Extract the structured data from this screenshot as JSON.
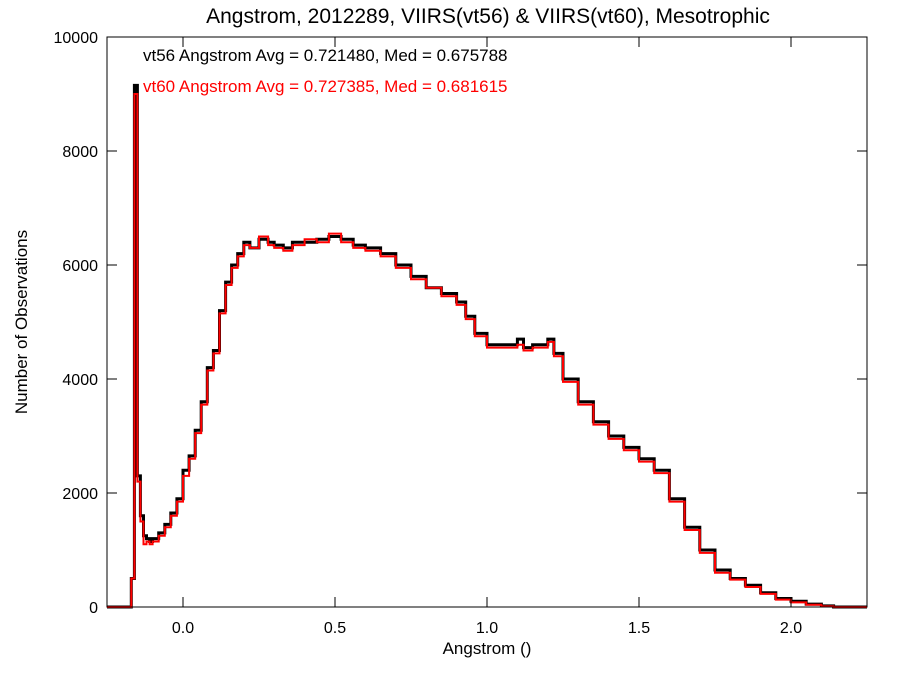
{
  "chart_data": {
    "type": "line",
    "title": "Angstrom, 2012289, VIIRS(vt56) & VIIRS(vt60), Mesotrophic",
    "xlabel": "Angstrom ()",
    "ylabel": "Number of Observations",
    "xlim": [
      -0.25,
      2.25
    ],
    "ylim": [
      0,
      10000
    ],
    "xticks": [
      0.0,
      0.5,
      1.0,
      1.5,
      2.0
    ],
    "xtick_labels": [
      "0.0",
      "0.5",
      "1.0",
      "1.5",
      "2.0"
    ],
    "yticks": [
      0,
      2000,
      4000,
      6000,
      8000,
      10000
    ],
    "ytick_labels": [
      "0",
      "2000",
      "4000",
      "6000",
      "8000",
      "10000"
    ],
    "grid": false,
    "step": true,
    "annotations": [
      {
        "text": "vt56 Angstrom Avg = 0.721480, Med = 0.675788",
        "color": "#000000"
      },
      {
        "text": "vt60 Angstrom Avg = 0.727385, Med = 0.681615",
        "color": "#ff0000"
      }
    ],
    "series": [
      {
        "color": "#000000",
        "x": [
          -0.25,
          -0.17,
          -0.16,
          -0.15,
          -0.14,
          -0.13,
          -0.12,
          -0.11,
          -0.1,
          -0.08,
          -0.06,
          -0.04,
          -0.02,
          0.0,
          0.02,
          0.04,
          0.06,
          0.08,
          0.1,
          0.12,
          0.14,
          0.16,
          0.18,
          0.2,
          0.22,
          0.25,
          0.28,
          0.3,
          0.33,
          0.36,
          0.4,
          0.44,
          0.48,
          0.52,
          0.56,
          0.6,
          0.65,
          0.7,
          0.75,
          0.8,
          0.85,
          0.9,
          0.93,
          0.96,
          1.0,
          1.05,
          1.1,
          1.12,
          1.15,
          1.2,
          1.22,
          1.25,
          1.3,
          1.35,
          1.4,
          1.45,
          1.5,
          1.55,
          1.6,
          1.65,
          1.7,
          1.75,
          1.8,
          1.85,
          1.9,
          1.95,
          2.0,
          2.05,
          2.1,
          2.14,
          2.25
        ],
        "values": [
          0,
          500,
          9150,
          2300,
          1600,
          1250,
          1200,
          1150,
          1200,
          1300,
          1450,
          1650,
          1900,
          2400,
          2650,
          3100,
          3600,
          4200,
          4500,
          5200,
          5700,
          6000,
          6200,
          6400,
          6300,
          6450,
          6400,
          6350,
          6300,
          6400,
          6400,
          6450,
          6500,
          6450,
          6350,
          6300,
          6200,
          6000,
          5800,
          5600,
          5500,
          5350,
          5100,
          4800,
          4600,
          4600,
          4700,
          4550,
          4600,
          4700,
          4450,
          4000,
          3600,
          3250,
          3000,
          2800,
          2600,
          2400,
          1900,
          1400,
          1000,
          650,
          500,
          380,
          250,
          150,
          100,
          50,
          20,
          0,
          0
        ]
      },
      {
        "color": "#ff0000",
        "x": [
          -0.25,
          -0.17,
          -0.16,
          -0.15,
          -0.14,
          -0.13,
          -0.12,
          -0.11,
          -0.1,
          -0.08,
          -0.06,
          -0.04,
          -0.02,
          0.0,
          0.02,
          0.04,
          0.06,
          0.08,
          0.1,
          0.12,
          0.14,
          0.16,
          0.18,
          0.2,
          0.22,
          0.25,
          0.28,
          0.3,
          0.33,
          0.36,
          0.4,
          0.44,
          0.48,
          0.52,
          0.56,
          0.6,
          0.65,
          0.7,
          0.75,
          0.8,
          0.85,
          0.9,
          0.93,
          0.96,
          1.0,
          1.05,
          1.1,
          1.12,
          1.15,
          1.2,
          1.22,
          1.25,
          1.3,
          1.35,
          1.4,
          1.45,
          1.5,
          1.55,
          1.6,
          1.65,
          1.7,
          1.75,
          1.8,
          1.85,
          1.9,
          1.95,
          2.0,
          2.05,
          2.1,
          2.14,
          2.25
        ],
        "values": [
          0,
          500,
          9000,
          2200,
          1500,
          1100,
          1150,
          1100,
          1150,
          1250,
          1400,
          1600,
          1850,
          2300,
          2600,
          3050,
          3550,
          4150,
          4450,
          5150,
          5650,
          5950,
          6150,
          6350,
          6300,
          6500,
          6350,
          6300,
          6250,
          6350,
          6450,
          6400,
          6550,
          6400,
          6300,
          6250,
          6150,
          5950,
          5750,
          5600,
          5450,
          5300,
          5050,
          4750,
          4550,
          4550,
          4600,
          4500,
          4550,
          4650,
          4400,
          3950,
          3550,
          3200,
          2950,
          2750,
          2550,
          2350,
          1850,
          1350,
          950,
          600,
          480,
          350,
          230,
          130,
          80,
          40,
          10,
          0,
          0
        ]
      }
    ]
  }
}
